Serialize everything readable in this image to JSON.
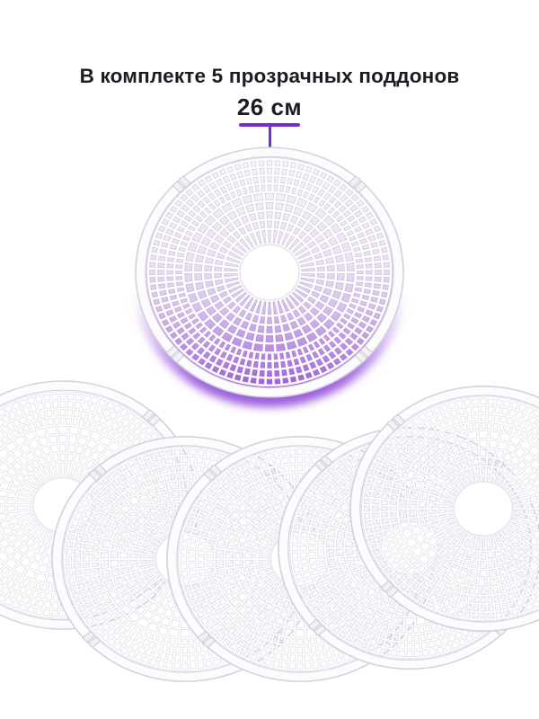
{
  "header": {
    "title": "В комплекте 5 прозрачных поддонов"
  },
  "callout": {
    "label": "26 см"
  },
  "product": {
    "tray_count": 5
  },
  "colors": {
    "background": "#ffffff",
    "text": "#1b1b22",
    "accent": "#7a2ec6",
    "accent_dot": "#6f28b4",
    "glow_purple": "#9c5cdb",
    "glow_lavender": "#d5bfec",
    "glow_near_white": "#f5f4f8",
    "mesh_white": "#ffffff",
    "mesh_shadow": "#dcd9e3",
    "main_mesh_shadow": "rgba(142,120,168,0.25)",
    "rim_gray": "#d5d2dc",
    "hub_ring": "#e9e6ef",
    "tab_fill": "#f2f1f6",
    "tab_stroke": "#c9c6d2"
  }
}
